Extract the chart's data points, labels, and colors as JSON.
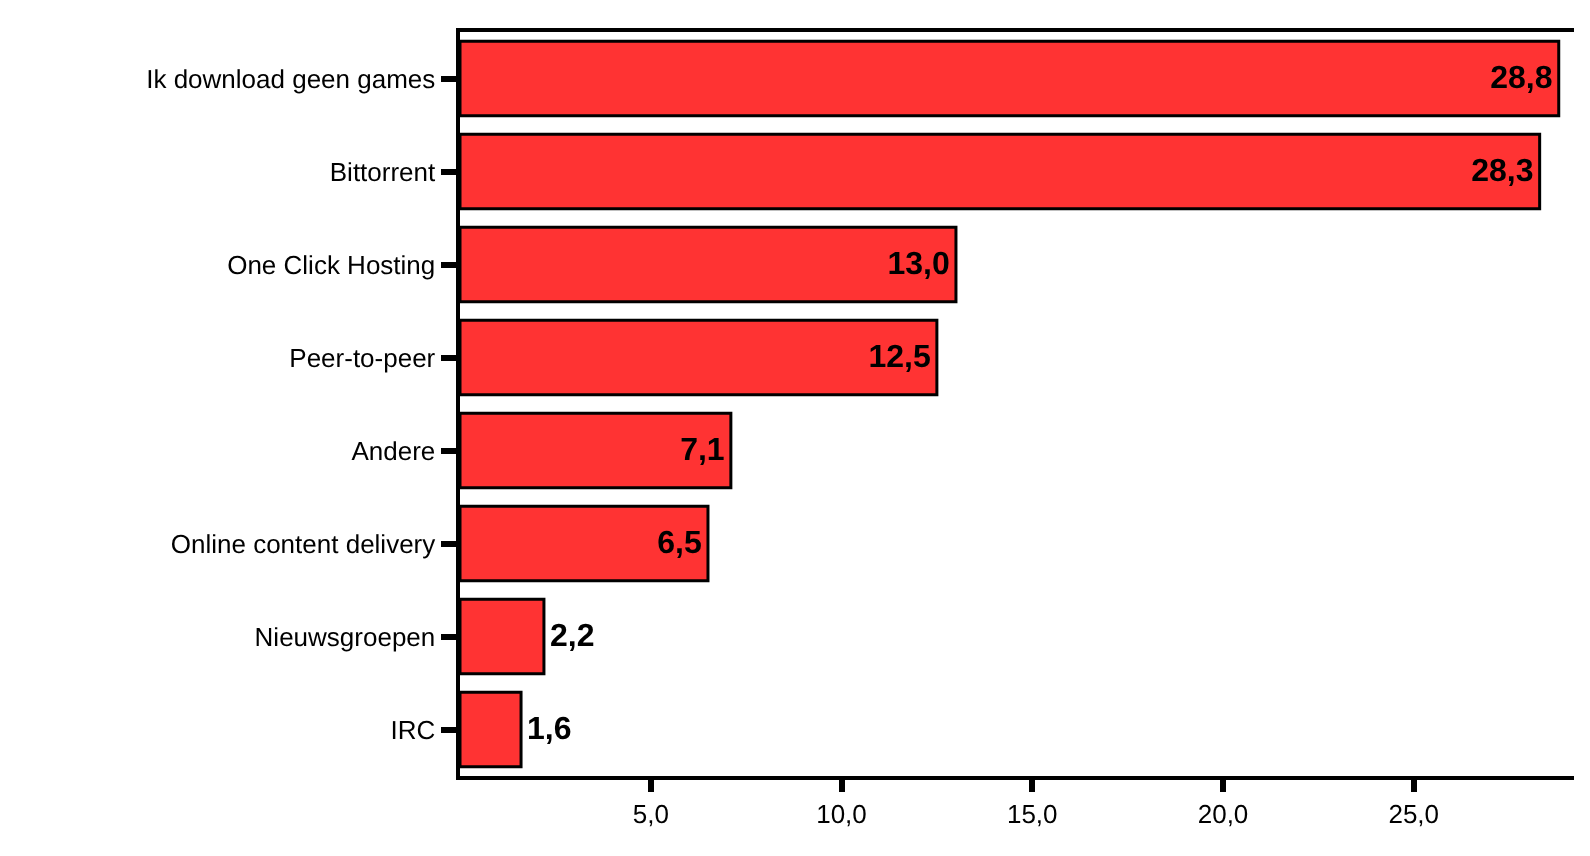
{
  "chart_data": {
    "type": "bar",
    "orientation": "horizontal",
    "categories": [
      "Ik download geen games",
      "Bittorrent",
      "One Click Hosting",
      "Peer-to-peer",
      "Andere",
      "Online content delivery",
      "Nieuwsgroepen",
      "IRC"
    ],
    "values": [
      28.8,
      28.3,
      13.0,
      12.5,
      7.1,
      6.5,
      2.2,
      1.6
    ],
    "color": "#ff3333",
    "xlim": [
      0,
      29.2
    ],
    "xticks": [
      {
        "value": 5,
        "label": "5,0"
      },
      {
        "value": 10,
        "label": "10,0"
      },
      {
        "value": 15,
        "label": "15,0"
      },
      {
        "value": 20,
        "label": "20,0"
      },
      {
        "value": 25,
        "label": "25,0"
      }
    ],
    "value_labels": [
      "28,8",
      "28,3",
      "13,0",
      "12,5",
      "7,1",
      "6,5",
      "2,2",
      "1,6"
    ]
  }
}
